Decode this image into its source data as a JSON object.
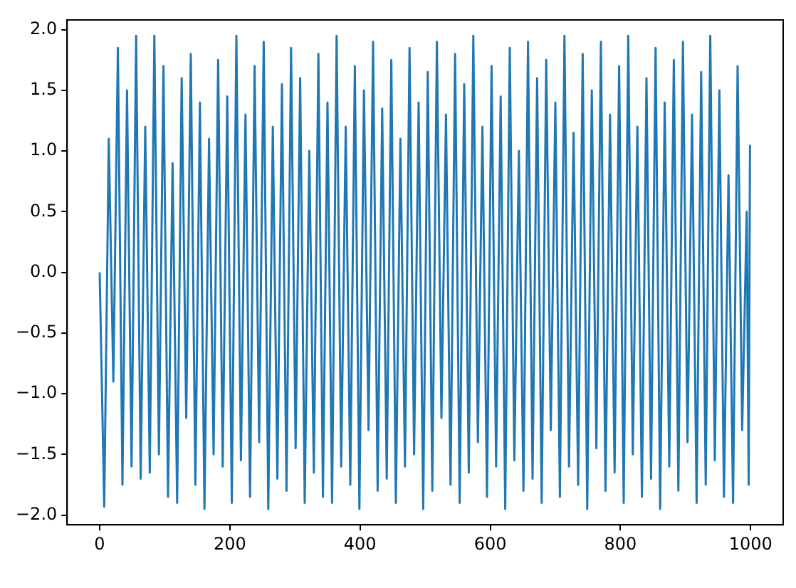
{
  "chart_data": {
    "type": "line",
    "x": [
      0,
      7,
      14,
      21,
      28,
      35,
      42,
      49,
      56,
      63,
      70,
      77,
      84,
      91,
      98,
      105,
      112,
      119,
      126,
      133,
      140,
      147,
      154,
      161,
      168,
      175,
      182,
      189,
      196,
      203,
      210,
      217,
      224,
      231,
      238,
      245,
      252,
      259,
      266,
      273,
      280,
      287,
      294,
      301,
      308,
      315,
      322,
      329,
      336,
      343,
      350,
      357,
      364,
      371,
      378,
      385,
      392,
      399,
      406,
      413,
      420,
      427,
      434,
      441,
      448,
      455,
      462,
      469,
      476,
      483,
      490,
      497,
      504,
      511,
      518,
      525,
      532,
      539,
      546,
      553,
      560,
      567,
      574,
      581,
      588,
      595,
      602,
      609,
      616,
      623,
      630,
      637,
      644,
      651,
      658,
      665,
      672,
      679,
      686,
      693,
      700,
      707,
      714,
      721,
      728,
      735,
      742,
      749,
      756,
      763,
      770,
      777,
      784,
      791,
      798,
      805,
      812,
      819,
      826,
      833,
      840,
      847,
      854,
      861,
      868,
      875,
      882,
      889,
      896,
      903,
      910,
      917,
      924,
      931,
      938,
      945,
      952,
      959,
      966,
      973,
      980,
      987,
      994,
      997,
      999
    ],
    "series": [
      {
        "color": "#1f77b4",
        "values": [
          0.0,
          -1.93,
          1.1,
          -0.9,
          1.85,
          -1.75,
          1.5,
          -1.6,
          1.95,
          -1.7,
          1.2,
          -1.65,
          1.95,
          -1.5,
          1.7,
          -1.85,
          0.9,
          -1.9,
          1.6,
          -1.2,
          1.8,
          -1.75,
          1.4,
          -1.95,
          1.1,
          -1.5,
          1.75,
          -1.6,
          1.45,
          -1.9,
          1.95,
          -1.55,
          1.3,
          -1.85,
          1.7,
          -1.4,
          1.9,
          -1.95,
          1.2,
          -1.7,
          1.55,
          -1.8,
          1.85,
          -1.45,
          1.6,
          -1.9,
          1.0,
          -1.65,
          1.8,
          -1.85,
          1.4,
          -1.9,
          1.95,
          -1.6,
          1.2,
          -1.75,
          1.7,
          -1.95,
          1.5,
          -1.3,
          1.9,
          -1.8,
          1.35,
          -1.7,
          1.75,
          -1.9,
          1.1,
          -1.6,
          1.85,
          -1.5,
          1.4,
          -1.95,
          1.65,
          -1.8,
          1.9,
          -1.2,
          1.3,
          -1.75,
          1.8,
          -1.9,
          1.55,
          -1.65,
          1.95,
          -1.4,
          1.2,
          -1.85,
          1.7,
          -1.6,
          1.45,
          -1.95,
          1.85,
          -1.55,
          1.0,
          -1.8,
          1.9,
          -1.7,
          1.6,
          -1.9,
          1.75,
          -1.3,
          1.4,
          -1.85,
          1.95,
          -1.6,
          1.15,
          -1.75,
          1.8,
          -1.95,
          1.5,
          -1.45,
          1.9,
          -1.8,
          1.3,
          -1.65,
          1.7,
          -1.9,
          1.95,
          -1.5,
          1.2,
          -1.85,
          1.6,
          -1.7,
          1.85,
          -1.95,
          1.4,
          -1.6,
          1.75,
          -1.8,
          1.9,
          -1.4,
          1.3,
          -1.9,
          1.65,
          -1.75,
          1.95,
          -1.55,
          1.5,
          -1.85,
          0.8,
          -1.9,
          1.7,
          -1.3,
          0.5,
          -1.75,
          1.05
        ]
      }
    ],
    "xlim": [
      -50,
      1050
    ],
    "xticks": [
      0,
      200,
      400,
      600,
      800,
      1000
    ],
    "ylim": [
      -2.08,
      2.08
    ],
    "yticks": [
      {
        "value": -2,
        "label": "−2.0"
      },
      {
        "value": -1.5,
        "label": "−1.5"
      },
      {
        "value": -1,
        "label": "−1.0"
      },
      {
        "value": -0.5,
        "label": "−0.5"
      },
      {
        "value": 0,
        "label": "0.0"
      },
      {
        "value": 0.5,
        "label": "0.5"
      },
      {
        "value": 1,
        "label": "1.0"
      },
      {
        "value": 1.5,
        "label": "1.5"
      },
      {
        "value": 2,
        "label": "2.0"
      }
    ],
    "grid": false,
    "legend": false
  }
}
